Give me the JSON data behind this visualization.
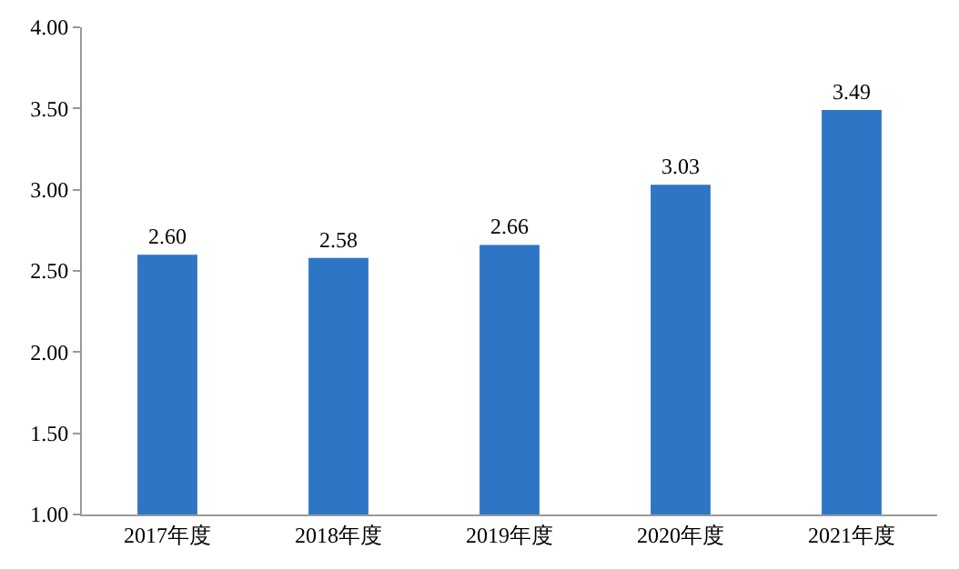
{
  "chart_data": {
    "type": "bar",
    "categories": [
      "2017年度",
      "2018年度",
      "2019年度",
      "2020年度",
      "2021年度"
    ],
    "values": [
      2.6,
      2.58,
      2.66,
      3.03,
      3.49
    ],
    "value_labels": [
      "2.60",
      "2.58",
      "2.66",
      "3.03",
      "3.49"
    ],
    "color": "#2e75c6",
    "ylim": [
      1,
      4
    ],
    "yticks": [
      {
        "value": 1,
        "label": "1.00"
      },
      {
        "value": 1.5,
        "label": "1.50"
      },
      {
        "value": 2,
        "label": "2.00"
      },
      {
        "value": 2.5,
        "label": "2.50"
      },
      {
        "value": 3,
        "label": "3.00"
      },
      {
        "value": 3.5,
        "label": "3.50"
      },
      {
        "value": 4,
        "label": "4.00"
      }
    ],
    "grid": false,
    "legend": false
  }
}
